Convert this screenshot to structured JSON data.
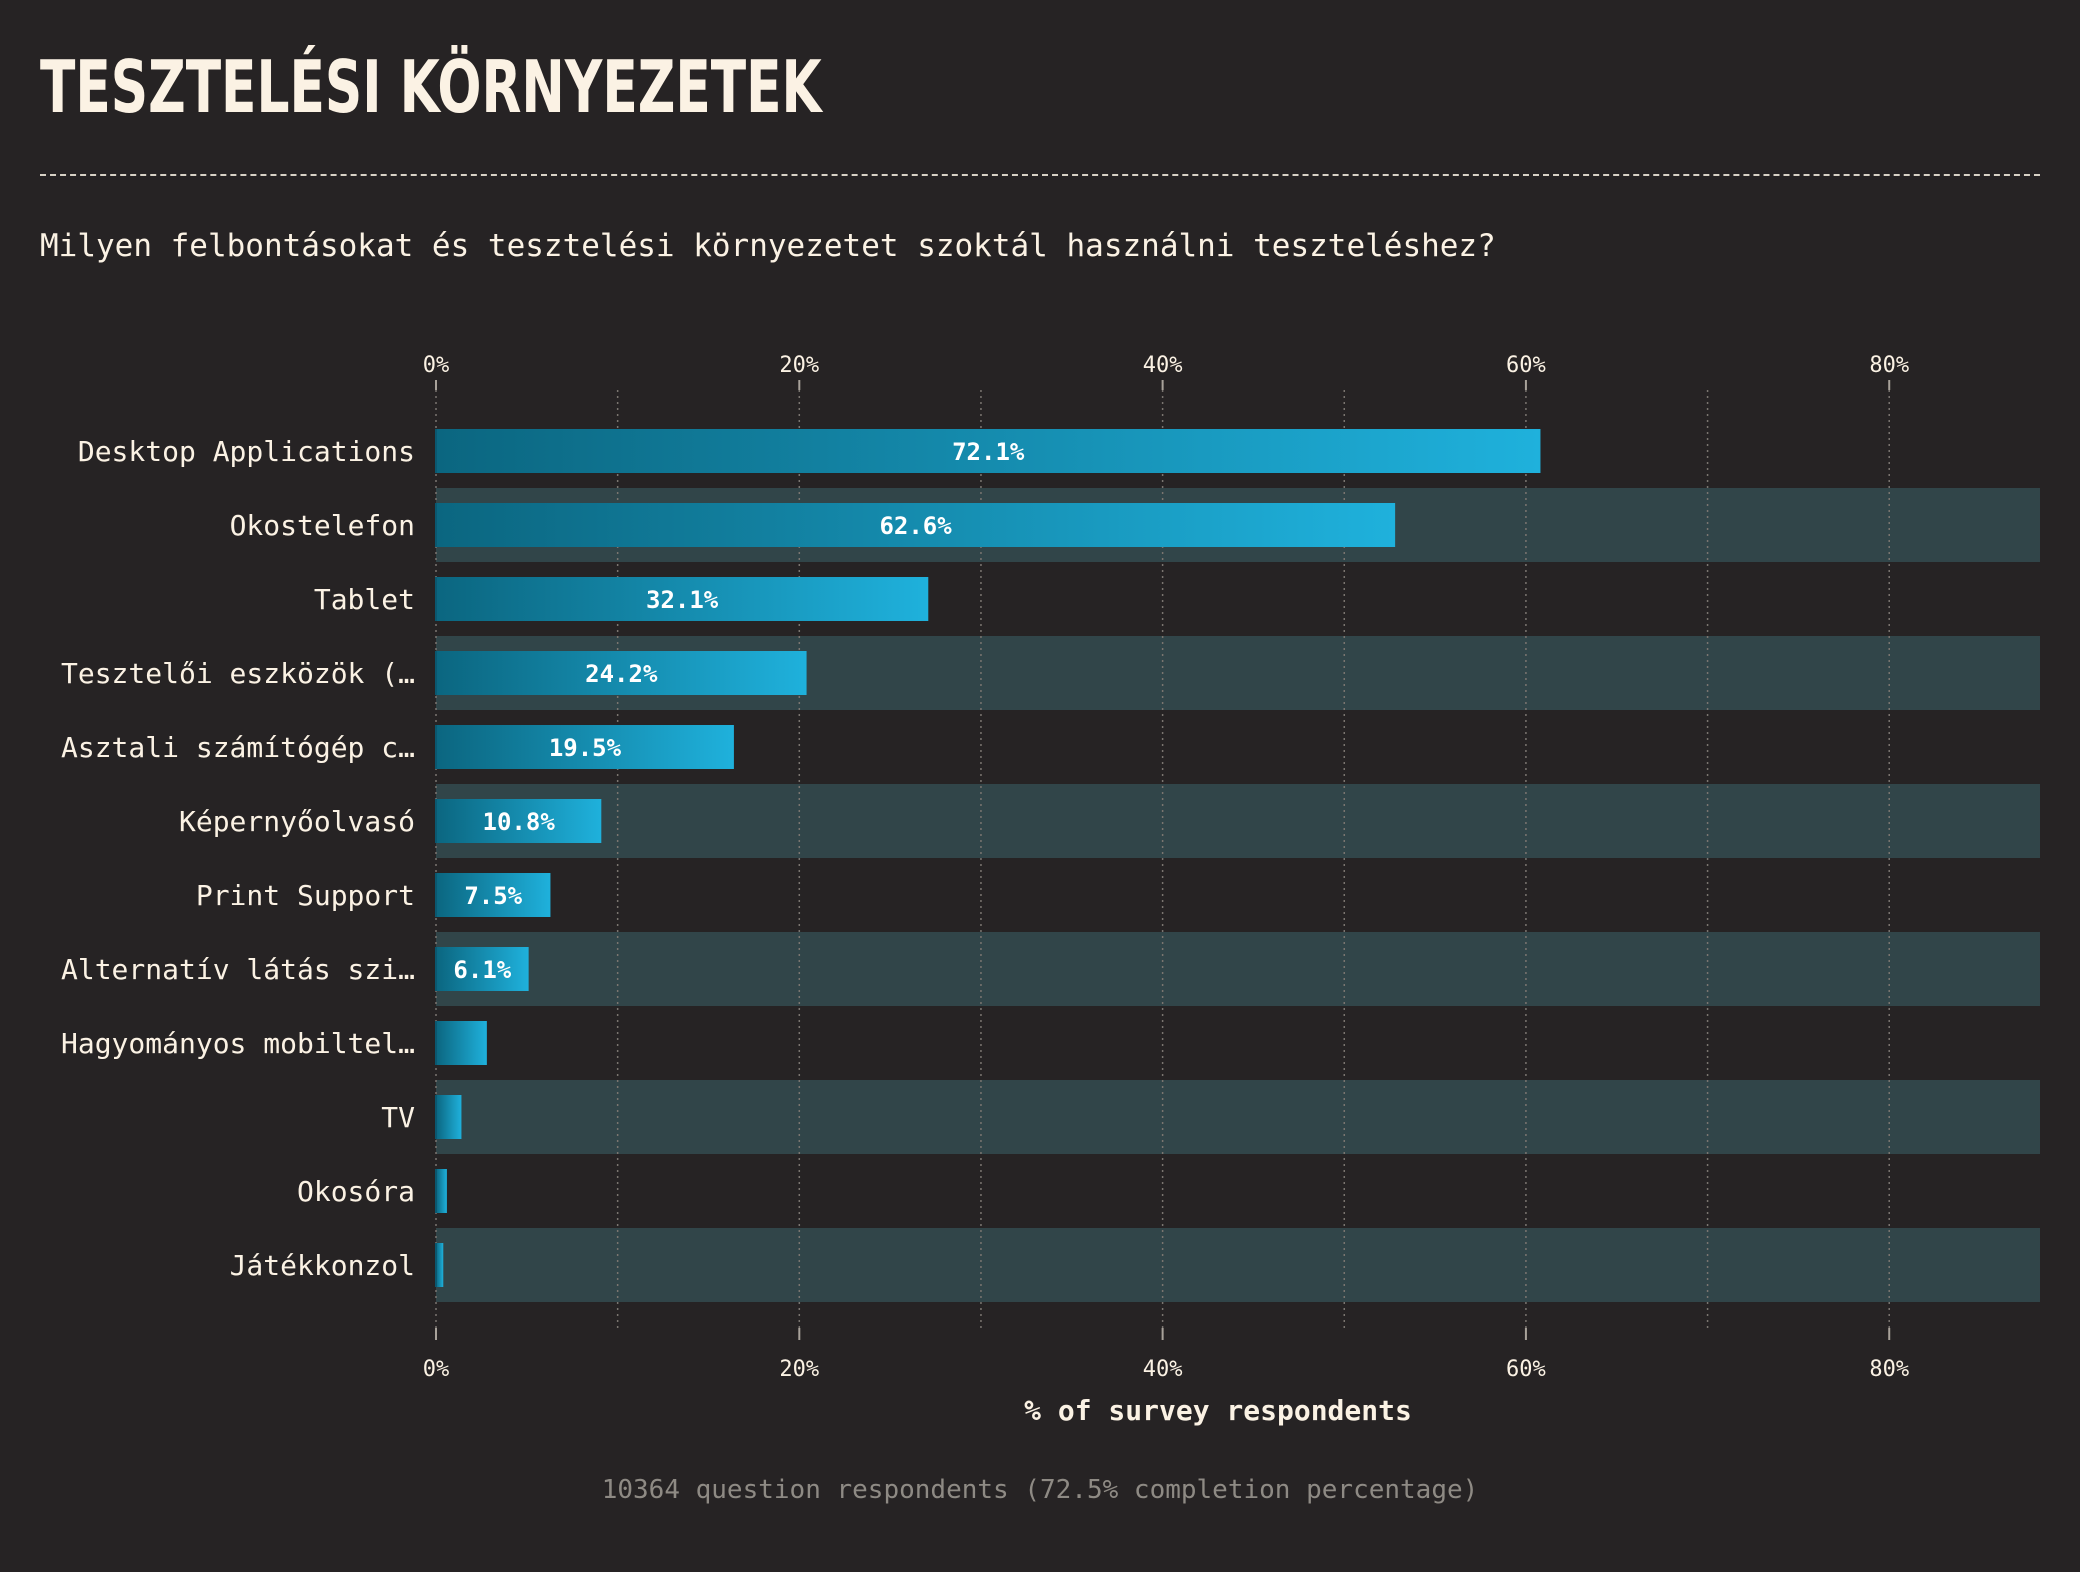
{
  "title": "TESZTELÉSI KÖRNYEZETEK",
  "subtitle": "Milyen felbontásokat és tesztelési környezetet szoktál használni teszteléshez?",
  "footer": "10364 question respondents (72.5% completion percentage)",
  "colors": {
    "background": "#262324",
    "bar_start": "#0b6680",
    "bar_end": "#1fb1dc",
    "band": "#314549",
    "text": "#fbf2e4",
    "muted": "#8e8a84"
  },
  "chart_data": {
    "type": "bar",
    "orientation": "horizontal",
    "categories": [
      "Desktop Applications",
      "Okostelefon",
      "Tablet",
      "Tesztelői eszközök (…",
      "Asztali számítógép c…",
      "Képernyőolvasó",
      "Print Support",
      "Alternatív látás szi…",
      "Hagyományos mobiltel…",
      "TV",
      "Okosóra",
      "Játékkonzol"
    ],
    "values": [
      60.8,
      52.8,
      27.1,
      20.4,
      16.4,
      9.1,
      6.3,
      5.1,
      2.8,
      1.4,
      0.6,
      0.4
    ],
    "data_labels": [
      "72.1%",
      "62.6%",
      "32.1%",
      "24.2%",
      "19.5%",
      "10.8%",
      "7.5%",
      "6.1%",
      "",
      "",
      "",
      ""
    ],
    "xlabel": "% of survey respondents",
    "x_ticks": [
      "0%",
      "20%",
      "40%",
      "60%",
      "80%"
    ],
    "x_tick_values": [
      0,
      20,
      40,
      60,
      80
    ],
    "xlim": [
      0,
      88.3
    ],
    "grid": true,
    "alternating_row_bands": true
  }
}
